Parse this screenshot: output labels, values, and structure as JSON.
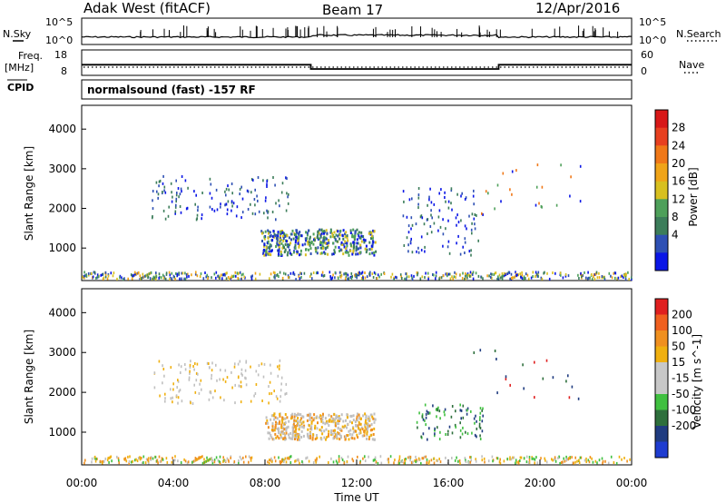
{
  "header": {
    "radar": "Adak West (fitACF)",
    "beam": "Beam 17",
    "date": "12/Apr/2016"
  },
  "left_labels": {
    "nsky": "N.Sky",
    "freq": "Freq.",
    "freq_unit": "[MHz]",
    "cpid": "CPID"
  },
  "right_labels": {
    "nsearch": "N.Search",
    "nave": "Nave"
  },
  "cpid_text": "normalsound (fast) -157 RF",
  "colors": {
    "scale_power": [
      "#0a16e6",
      "#2e50b4",
      "#3c7d5a",
      "#4ea05a",
      "#d8c020",
      "#f0a418",
      "#f07818",
      "#e84020",
      "#d81818"
    ],
    "scale_velocity": [
      "#e02020",
      "#f06020",
      "#f09020",
      "#f0b010",
      "#c8c8c8",
      "#c8c8c8",
      "#40c040",
      "#2e6f3c",
      "#203c80",
      "#1e3cd0"
    ],
    "ground_scatter": "#c0c0c0"
  },
  "chart_data": [
    {
      "type": "line",
      "name": "noise-panel",
      "ylabel_left": "N.Sky",
      "ylabel_right": "N.Search",
      "y_ticks_left": [
        "10^5",
        "10^0"
      ],
      "y_ticks_right": [
        "10^5",
        "10^0"
      ],
      "xlim": [
        0,
        24
      ]
    },
    {
      "type": "line",
      "name": "frequency-panel",
      "ylabel_left": "Freq. [MHz]",
      "ylabel_right": "Nave",
      "y_ticks_left": [
        "18",
        "8"
      ],
      "y_ticks_right": [
        "60",
        "0"
      ],
      "freq_series": {
        "x": [
          0,
          10,
          10,
          18.2,
          18.2,
          24
        ],
        "y": [
          12,
          12,
          10,
          10,
          12,
          12
        ]
      },
      "xlim": [
        0,
        24
      ]
    },
    {
      "type": "heatmap",
      "name": "power-panel",
      "ylabel": "Slant Range [km]",
      "y_ticks": [
        "4000",
        "3000",
        "2000",
        "1000"
      ],
      "ylim": [
        180,
        4600
      ],
      "xlim": [
        0,
        24
      ],
      "colorbar_label": "Power [dB]",
      "colorbar_ticks": [
        "28",
        "24",
        "20",
        "16",
        "12",
        "8",
        "4"
      ]
    },
    {
      "type": "heatmap",
      "name": "velocity-panel",
      "ylabel": "Slant Range [km]",
      "y_ticks": [
        "4000",
        "3000",
        "2000",
        "1000"
      ],
      "ylim": [
        180,
        4600
      ],
      "xlim": [
        0,
        24
      ],
      "xlabel": "Time UT",
      "x_ticks": [
        "00:00",
        "04:00",
        "08:00",
        "12:00",
        "16:00",
        "20:00",
        "00:00"
      ],
      "colorbar_label": "Velocity [m s^-1]",
      "colorbar_ticks": [
        "200",
        "100",
        "50",
        "15",
        "-15",
        "-50",
        "-100",
        "-200"
      ]
    }
  ]
}
